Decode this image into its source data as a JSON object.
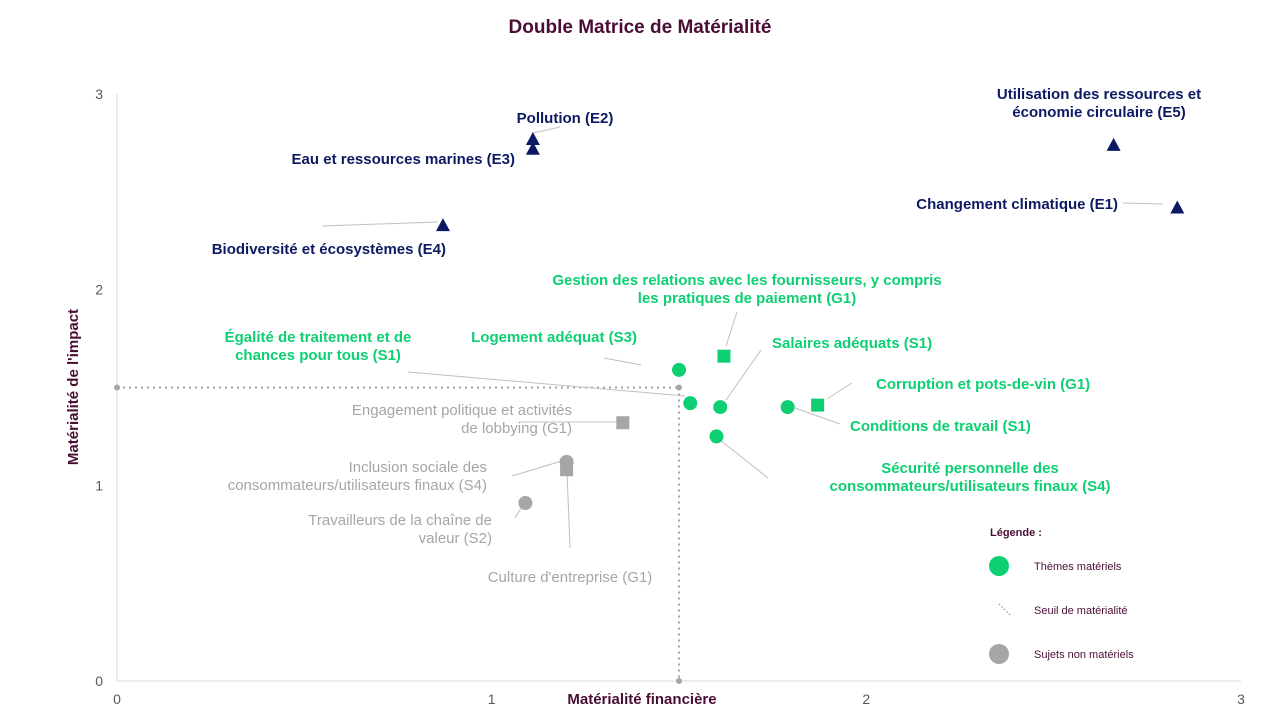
{
  "chart_data": {
    "type": "scatter",
    "title": "Double Matrice de Matérialité",
    "xlabel": "Matérialité financière",
    "ylabel": "Matérialité de l'impact",
    "xlim": [
      0,
      3
    ],
    "ylim": [
      0,
      3
    ],
    "xticks": [
      "0",
      "1",
      "2",
      "3"
    ],
    "yticks": [
      "0",
      "1",
      "2",
      "3"
    ],
    "threshold": {
      "x": 1.5,
      "y": 1.5
    },
    "colors": {
      "environment": "#0d1a63",
      "material": "#0ecf72",
      "non_material": "#a6a6a6",
      "title": "#4a0e35",
      "threshold": "#a6a6a6"
    },
    "points": [
      {
        "label": [
          "Pollution (E2)"
        ],
        "x": 1.11,
        "y": 2.77,
        "shape": "triangle",
        "group": "environment",
        "anchor": "middle"
      },
      {
        "label": [
          "Eau et ressources marines (E3)"
        ],
        "x": 1.11,
        "y": 2.72,
        "shape": "triangle",
        "group": "environment",
        "anchor": "end"
      },
      {
        "label": [
          "Utilisation des ressources et",
          "économie circulaire (E5)"
        ],
        "x": 2.66,
        "y": 2.74,
        "shape": "triangle",
        "group": "environment",
        "anchor": "middle"
      },
      {
        "label": [
          "Changement climatique (E1)"
        ],
        "x": 2.83,
        "y": 2.42,
        "shape": "triangle",
        "group": "environment",
        "anchor": "end"
      },
      {
        "label": [
          "Biodiversité et écosystèmes (E4)"
        ],
        "x": 0.87,
        "y": 2.33,
        "shape": "triangle",
        "group": "environment",
        "anchor": "end"
      },
      {
        "label": [
          "Gestion des relations avec les fournisseurs, y compris",
          "les pratiques de paiement (G1)"
        ],
        "x": 1.62,
        "y": 1.66,
        "shape": "square",
        "group": "material",
        "anchor": "middle"
      },
      {
        "label": [
          "Salaires adéquats (S1)"
        ],
        "x": 1.61,
        "y": 1.4,
        "shape": "circle",
        "group": "material",
        "anchor": "start"
      },
      {
        "label": [
          "Logement adéquat (S3)"
        ],
        "x": 1.5,
        "y": 1.59,
        "shape": "circle",
        "group": "material",
        "anchor": "end"
      },
      {
        "label": [
          "Égalité de traitement et de",
          "chances pour tous (S1)"
        ],
        "x": 1.53,
        "y": 1.42,
        "shape": "circle",
        "group": "material",
        "anchor": "middle"
      },
      {
        "label": [
          "Corruption et pots-de-vin (G1)"
        ],
        "x": 1.87,
        "y": 1.41,
        "shape": "square",
        "group": "material",
        "anchor": "start"
      },
      {
        "label": [
          "Conditions de travail (S1)"
        ],
        "x": 1.79,
        "y": 1.4,
        "shape": "circle",
        "group": "material",
        "anchor": "start"
      },
      {
        "label": [
          "Sécurité personnelle des",
          "consommateurs/utilisateurs finaux (S4)"
        ],
        "x": 1.6,
        "y": 1.25,
        "shape": "circle",
        "group": "material",
        "anchor": "middle"
      },
      {
        "label": [
          "Engagement politique et activités",
          "de lobbying (G1)"
        ],
        "x": 1.35,
        "y": 1.32,
        "shape": "square",
        "group": "non_material",
        "anchor": "end"
      },
      {
        "label": [
          "Inclusion sociale des",
          "consommateurs/utilisateurs finaux (S4)"
        ],
        "x": 1.2,
        "y": 1.12,
        "shape": "circle",
        "group": "non_material",
        "anchor": "end"
      },
      {
        "label": [
          "Culture d'entreprise (G1)"
        ],
        "x": 1.2,
        "y": 1.08,
        "shape": "square",
        "group": "non_material",
        "anchor": "middle"
      },
      {
        "label": [
          "Travailleurs de la chaîne de",
          "valeur (S2)"
        ],
        "x": 1.09,
        "y": 0.91,
        "shape": "circle",
        "group": "non_material",
        "anchor": "end"
      }
    ]
  },
  "legend": {
    "title": "Légende :",
    "items": [
      {
        "label": "Thèmes matériels",
        "symbol": "circle",
        "color": "#0ecf72"
      },
      {
        "label": "Seuil de matérialité",
        "symbol": "dotted-line",
        "color": "#a6a6a6"
      },
      {
        "label": "Sujets non matériels",
        "symbol": "circle",
        "color": "#a6a6a6"
      }
    ]
  }
}
